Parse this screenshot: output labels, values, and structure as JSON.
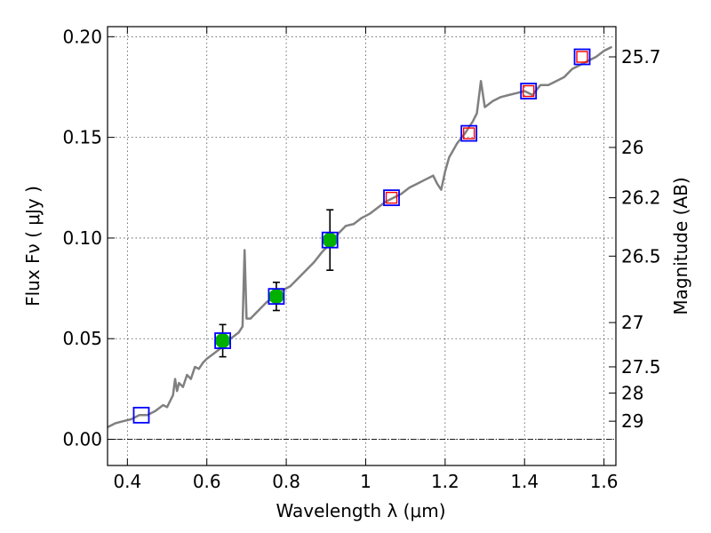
{
  "chart_data": {
    "type": "scatter",
    "title": "",
    "xlabel": "Wavelength  λ (μm)",
    "ylabel": "Flux  Fν  ( μJy )",
    "y2label": "Magnitude (AB)",
    "xlim": [
      0.35,
      1.63
    ],
    "ylim": [
      -0.013,
      0.205
    ],
    "grid": true,
    "x_ticks": [
      0.4,
      0.6,
      0.8,
      1.0,
      1.2,
      1.4,
      1.6
    ],
    "x_tick_labels": [
      "0.4",
      "0.6",
      "0.8",
      "1",
      "1.2",
      "1.4",
      "1.6"
    ],
    "y_ticks": [
      0.0,
      0.05,
      0.1,
      0.15,
      0.2
    ],
    "y_tick_labels": [
      "0.00",
      "0.05",
      "0.10",
      "0.15",
      "0.20"
    ],
    "y2_ticks": [
      {
        "label": "25.7",
        "flux": 0.19
      },
      {
        "label": "26",
        "flux": 0.145
      },
      {
        "label": "26.2",
        "flux": 0.12
      },
      {
        "label": "26.5",
        "flux": 0.091
      },
      {
        "label": "27",
        "flux": 0.058
      },
      {
        "label": "27.5",
        "flux": 0.036
      },
      {
        "label": "28",
        "flux": 0.023
      },
      {
        "label": "29",
        "flux": 0.009
      }
    ],
    "zero_line": 0.0,
    "colors": {
      "model": "#808080",
      "measured": "#00b000",
      "errorbar": "#000000",
      "model_box": "#0000ff",
      "synthetic_box": "#ff0000"
    },
    "series": [
      {
        "kind": "model-spectrum",
        "points": [
          [
            0.35,
            0.006
          ],
          [
            0.37,
            0.008
          ],
          [
            0.39,
            0.009
          ],
          [
            0.41,
            0.01
          ],
          [
            0.43,
            0.012
          ],
          [
            0.45,
            0.012
          ],
          [
            0.47,
            0.014
          ],
          [
            0.49,
            0.017
          ],
          [
            0.5,
            0.016
          ],
          [
            0.51,
            0.02
          ],
          [
            0.515,
            0.022
          ],
          [
            0.52,
            0.03
          ],
          [
            0.525,
            0.024
          ],
          [
            0.53,
            0.028
          ],
          [
            0.54,
            0.026
          ],
          [
            0.55,
            0.032
          ],
          [
            0.56,
            0.03
          ],
          [
            0.57,
            0.036
          ],
          [
            0.58,
            0.035
          ],
          [
            0.59,
            0.038
          ],
          [
            0.6,
            0.04
          ],
          [
            0.62,
            0.043
          ],
          [
            0.64,
            0.046
          ],
          [
            0.66,
            0.05
          ],
          [
            0.68,
            0.053
          ],
          [
            0.69,
            0.056
          ],
          [
            0.695,
            0.094
          ],
          [
            0.7,
            0.06
          ],
          [
            0.71,
            0.06
          ],
          [
            0.73,
            0.064
          ],
          [
            0.75,
            0.068
          ],
          [
            0.77,
            0.071
          ],
          [
            0.79,
            0.074
          ],
          [
            0.81,
            0.076
          ],
          [
            0.83,
            0.08
          ],
          [
            0.85,
            0.084
          ],
          [
            0.87,
            0.088
          ],
          [
            0.89,
            0.093
          ],
          [
            0.91,
            0.097
          ],
          [
            0.93,
            0.102
          ],
          [
            0.95,
            0.106
          ],
          [
            0.97,
            0.107
          ],
          [
            0.99,
            0.11
          ],
          [
            1.01,
            0.112
          ],
          [
            1.03,
            0.115
          ],
          [
            1.05,
            0.118
          ],
          [
            1.07,
            0.12
          ],
          [
            1.09,
            0.122
          ],
          [
            1.11,
            0.125
          ],
          [
            1.13,
            0.127
          ],
          [
            1.15,
            0.129
          ],
          [
            1.17,
            0.131
          ],
          [
            1.18,
            0.127
          ],
          [
            1.19,
            0.124
          ],
          [
            1.2,
            0.133
          ],
          [
            1.21,
            0.14
          ],
          [
            1.23,
            0.147
          ],
          [
            1.25,
            0.152
          ],
          [
            1.27,
            0.158
          ],
          [
            1.28,
            0.162
          ],
          [
            1.29,
            0.178
          ],
          [
            1.3,
            0.165
          ],
          [
            1.32,
            0.168
          ],
          [
            1.34,
            0.17
          ],
          [
            1.36,
            0.171
          ],
          [
            1.38,
            0.172
          ],
          [
            1.4,
            0.173
          ],
          [
            1.42,
            0.171
          ],
          [
            1.44,
            0.176
          ],
          [
            1.46,
            0.176
          ],
          [
            1.48,
            0.178
          ],
          [
            1.5,
            0.18
          ],
          [
            1.52,
            0.184
          ],
          [
            1.54,
            0.186
          ],
          [
            1.56,
            0.188
          ],
          [
            1.58,
            0.19
          ],
          [
            1.6,
            0.193
          ],
          [
            1.62,
            0.195
          ]
        ]
      },
      {
        "kind": "measured",
        "points": [
          {
            "x": 0.64,
            "y": 0.049,
            "yerr": 0.008
          },
          {
            "x": 0.775,
            "y": 0.071,
            "yerr": 0.007
          },
          {
            "x": 0.91,
            "y": 0.099,
            "yerr": 0.015
          }
        ]
      },
      {
        "kind": "model-photometry",
        "points": [
          {
            "x": 0.435,
            "y": 0.012
          },
          {
            "x": 0.64,
            "y": 0.049
          },
          {
            "x": 0.775,
            "y": 0.071
          },
          {
            "x": 0.91,
            "y": 0.099
          },
          {
            "x": 1.065,
            "y": 0.12
          },
          {
            "x": 1.26,
            "y": 0.152
          },
          {
            "x": 1.41,
            "y": 0.173
          },
          {
            "x": 1.545,
            "y": 0.19
          }
        ]
      },
      {
        "kind": "synthetic-photometry",
        "points": [
          {
            "x": 1.065,
            "y": 0.12
          },
          {
            "x": 1.26,
            "y": 0.152
          },
          {
            "x": 1.41,
            "y": 0.173
          },
          {
            "x": 1.545,
            "y": 0.19
          }
        ]
      }
    ]
  }
}
